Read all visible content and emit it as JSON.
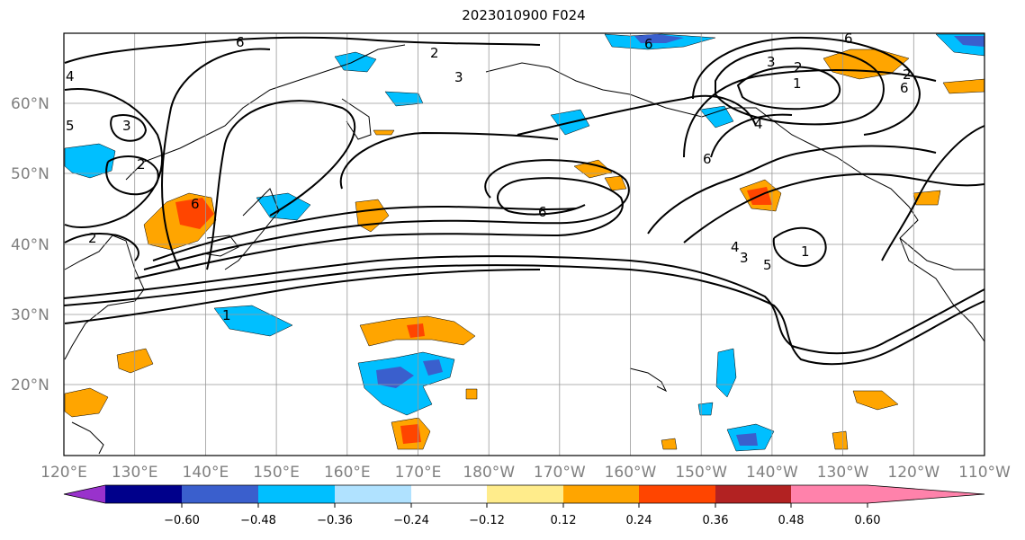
{
  "title": "2023010900 F024",
  "map": {
    "lon_labels": [
      "120°E",
      "130°E",
      "140°E",
      "150°E",
      "160°E",
      "170°E",
      "180°W",
      "170°W",
      "160°W",
      "150°W",
      "140°W",
      "130°W",
      "120°W",
      "110°W"
    ],
    "lat_labels": [
      "60°N",
      "50°N",
      "40°N",
      "30°N",
      "20°N"
    ]
  },
  "contour_labels": [
    "6",
    "4",
    "2",
    "3",
    "5",
    "6",
    "3",
    "2",
    "1",
    "6",
    "4",
    "6",
    "2",
    "3",
    "2",
    "2",
    "6",
    "4",
    "3",
    "5",
    "1",
    "6",
    "6",
    "1"
  ],
  "colorbar": {
    "tick_labels": [
      "−0.60",
      "−0.48",
      "−0.36",
      "−0.24",
      "−0.12",
      "0.12",
      "0.24",
      "0.36",
      "0.48",
      "0.60"
    ],
    "colors": [
      "#9932cc",
      "#00008b",
      "#3a5fcd",
      "#00bfff",
      "#b0e2ff",
      "#ffffff",
      "#ffec8b",
      "#ffa500",
      "#ff4500",
      "#b22222",
      "#ff82ab"
    ]
  }
}
